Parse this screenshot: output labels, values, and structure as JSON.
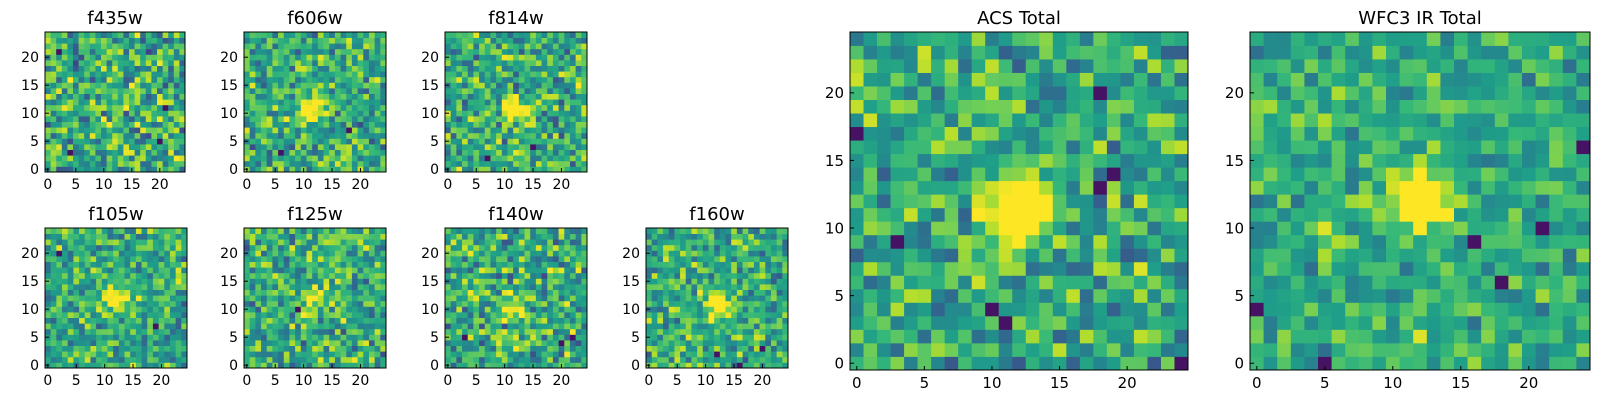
{
  "chart_data": [
    {
      "type": "heatmap",
      "title": "f435w",
      "colormap": "viridis",
      "image_size": 25,
      "xticks": [
        0,
        5,
        10,
        15,
        20
      ],
      "yticks": [
        0,
        5,
        10,
        15,
        20
      ],
      "xlim": [
        0,
        25
      ],
      "ylim": [
        0,
        25
      ],
      "source_peak": [
        12,
        12
      ],
      "peak_strength": 0.1,
      "noise_level": 0.55,
      "bright_spots": [
        [
          12,
          18
        ],
        [
          16,
          16
        ],
        [
          8,
          12
        ]
      ],
      "dark_spots": [
        [
          2,
          21
        ],
        [
          4,
          3
        ],
        [
          21,
          11
        ],
        [
          20,
          5
        ]
      ]
    },
    {
      "type": "heatmap",
      "title": "f606w",
      "colormap": "viridis",
      "image_size": 25,
      "xticks": [
        0,
        5,
        10,
        15,
        20
      ],
      "yticks": [
        0,
        5,
        10,
        15,
        20
      ],
      "xlim": [
        0,
        25
      ],
      "ylim": [
        0,
        25
      ],
      "source_peak": [
        12,
        11
      ],
      "peak_strength": 0.65,
      "noise_level": 0.5,
      "bright_spots": [],
      "dark_spots": [
        [
          18,
          7
        ],
        [
          6,
          3
        ]
      ]
    },
    {
      "type": "heatmap",
      "title": "f814w",
      "colormap": "viridis",
      "image_size": 25,
      "xticks": [
        0,
        5,
        10,
        15,
        20
      ],
      "yticks": [
        0,
        5,
        10,
        15,
        20
      ],
      "xlim": [
        0,
        25
      ],
      "ylim": [
        0,
        25
      ],
      "source_peak": [
        12,
        11
      ],
      "peak_strength": 0.6,
      "noise_level": 0.5,
      "bright_spots": [],
      "dark_spots": [
        [
          15,
          4
        ],
        [
          7,
          2
        ]
      ]
    },
    {
      "type": "heatmap",
      "title": "f105w",
      "colormap": "viridis",
      "image_size": 25,
      "xticks": [
        0,
        5,
        10,
        15,
        20
      ],
      "yticks": [
        0,
        5,
        10,
        15,
        20
      ],
      "xlim": [
        0,
        25
      ],
      "ylim": [
        0,
        25
      ],
      "source_peak": [
        12,
        12
      ],
      "peak_strength": 0.55,
      "noise_level": 0.45,
      "bright_spots": [
        [
          9,
          10
        ]
      ],
      "dark_spots": [
        [
          2,
          20
        ],
        [
          19,
          7
        ]
      ]
    },
    {
      "type": "heatmap",
      "title": "f125w",
      "colormap": "viridis",
      "image_size": 25,
      "xticks": [
        0,
        5,
        10,
        15,
        20
      ],
      "yticks": [
        0,
        5,
        10,
        15,
        20
      ],
      "xlim": [
        0,
        25
      ],
      "ylim": [
        0,
        25
      ],
      "source_peak": [
        12,
        11
      ],
      "peak_strength": 0.35,
      "noise_level": 0.5,
      "bright_spots": [
        [
          13,
          1
        ],
        [
          16,
          15
        ]
      ],
      "dark_spots": [
        [
          9,
          10
        ]
      ]
    },
    {
      "type": "heatmap",
      "title": "f140w",
      "colormap": "viridis",
      "image_size": 25,
      "xticks": [
        0,
        5,
        10,
        15,
        20
      ],
      "yticks": [
        0,
        5,
        10,
        15,
        20
      ],
      "xlim": [
        0,
        25
      ],
      "ylim": [
        0,
        25
      ],
      "source_peak": [
        12,
        11
      ],
      "peak_strength": 0.4,
      "noise_level": 0.5,
      "bright_spots": [
        [
          10,
          6
        ]
      ],
      "dark_spots": [
        [
          22,
          5
        ],
        [
          20,
          4
        ],
        [
          3,
          5
        ]
      ]
    },
    {
      "type": "heatmap",
      "title": "f160w",
      "colormap": "viridis",
      "image_size": 25,
      "xticks": [
        0,
        5,
        10,
        15,
        20
      ],
      "yticks": [
        0,
        5,
        10,
        15,
        20
      ],
      "xlim": [
        0,
        25
      ],
      "ylim": [
        0,
        25
      ],
      "source_peak": [
        12,
        11
      ],
      "peak_strength": 0.55,
      "noise_level": 0.45,
      "bright_spots": [],
      "dark_spots": [
        [
          12,
          2
        ],
        [
          20,
          3
        ],
        [
          16,
          0
        ]
      ]
    },
    {
      "type": "heatmap",
      "title": "ACS Total",
      "colormap": "viridis",
      "image_size": 25,
      "xticks": [
        0,
        5,
        10,
        15,
        20
      ],
      "yticks": [
        0,
        5,
        10,
        15,
        20
      ],
      "xlim": [
        0,
        25
      ],
      "ylim": [
        0,
        25
      ],
      "source_peak": [
        12,
        11
      ],
      "peak_strength": 0.75,
      "noise_level": 0.45,
      "bright_spots": [],
      "dark_spots": [
        [
          0,
          17
        ],
        [
          18,
          13
        ],
        [
          19,
          14
        ],
        [
          10,
          4
        ],
        [
          11,
          3
        ],
        [
          18,
          20
        ],
        [
          24,
          0
        ],
        [
          3,
          9
        ]
      ]
    },
    {
      "type": "heatmap",
      "title": "WFC3 IR Total",
      "colormap": "viridis",
      "image_size": 25,
      "xticks": [
        0,
        5,
        10,
        15,
        20
      ],
      "yticks": [
        0,
        5,
        10,
        15,
        20
      ],
      "xlim": [
        0,
        25
      ],
      "ylim": [
        0,
        25
      ],
      "source_peak": [
        12,
        12
      ],
      "peak_strength": 0.8,
      "noise_level": 0.35,
      "bright_spots": [
        [
          5,
          10
        ],
        [
          12,
          2
        ]
      ],
      "dark_spots": [
        [
          0,
          4
        ],
        [
          5,
          0
        ],
        [
          18,
          6
        ],
        [
          16,
          9
        ],
        [
          21,
          10
        ],
        [
          24,
          16
        ]
      ]
    }
  ]
}
